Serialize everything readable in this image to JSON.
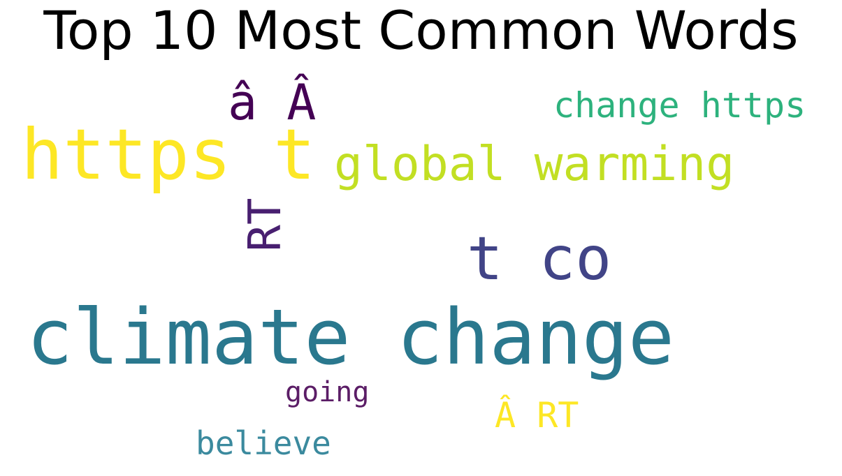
{
  "title": "Top 10 Most Common Words",
  "words": [
    {
      "text": "climate change",
      "color": "#2a788e"
    },
    {
      "text": "https t",
      "color": "#fde725"
    },
    {
      "text": "t co",
      "color": "#414487"
    },
    {
      "text": "global warming",
      "color": "#c2df23"
    },
    {
      "text": "â Â",
      "color": "#440154"
    },
    {
      "text": "RT",
      "color": "#481f70"
    },
    {
      "text": "change https",
      "color": "#2db27d"
    },
    {
      "text": "Â RT",
      "color": "#fde725"
    },
    {
      "text": "going",
      "color": "#5b1d66"
    },
    {
      "text": "believe",
      "color": "#3b8a9e"
    }
  ]
}
